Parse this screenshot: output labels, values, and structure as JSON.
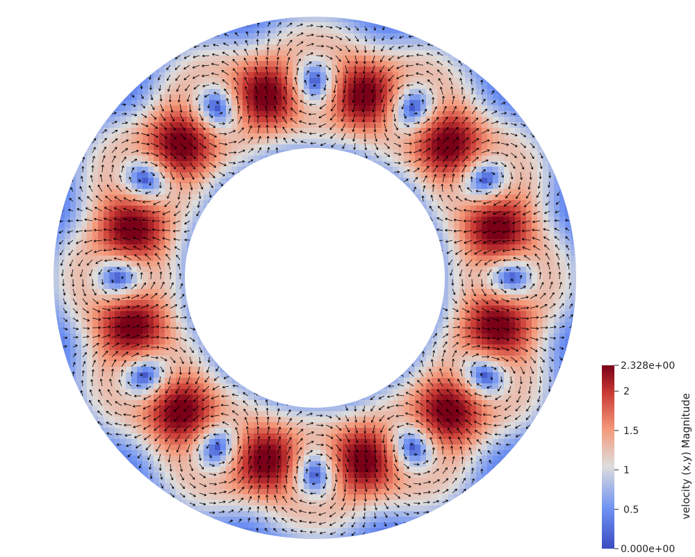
{
  "colorbar": {
    "title": "velocity (x,y) Magnitude",
    "min_label": "0.000e+00",
    "max_label": "2.328e+00",
    "min": 0.0,
    "max": 2.328,
    "ticks": [
      {
        "value": 0.5,
        "label": "0.5"
      },
      {
        "value": 1.0,
        "label": "1"
      },
      {
        "value": 1.5,
        "label": "1.5"
      },
      {
        "value": 2.0,
        "label": "2"
      }
    ],
    "colormap": [
      "#3b4cc0",
      "#8db0fe",
      "#dddddd",
      "#f49a7b",
      "#b40426",
      "#7a0018"
    ]
  },
  "field": {
    "vortex_pairs": 6,
    "background": "#ffffff",
    "arrow_color": "#000000"
  }
}
